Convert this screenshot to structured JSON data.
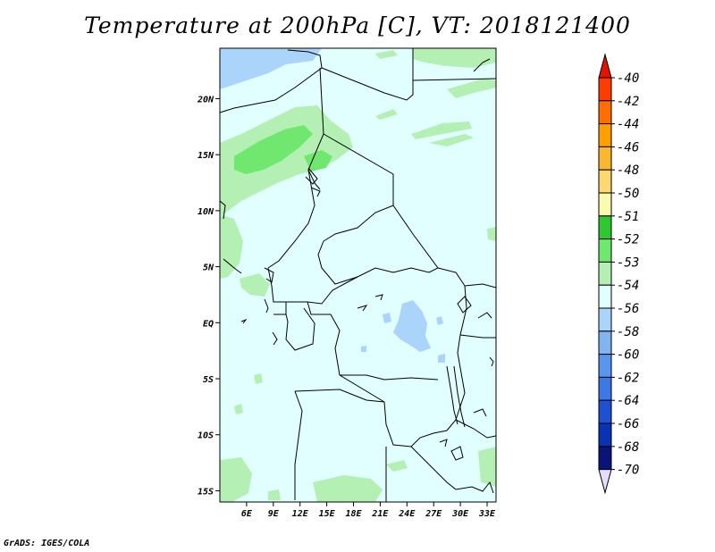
{
  "title": "Temperature at 200hPa [C], VT: 2018121400",
  "credit": "GrADS: IGES/COLA",
  "map": {
    "lon_range": [
      3,
      34
    ],
    "lat_range": [
      -16,
      24.5
    ],
    "x_ticks": [
      "6E",
      "9E",
      "12E",
      "15E",
      "18E",
      "21E",
      "24E",
      "27E",
      "30E",
      "33E"
    ],
    "x_tick_values": [
      6,
      9,
      12,
      15,
      18,
      21,
      24,
      27,
      30,
      33
    ],
    "y_ticks": [
      "20N",
      "15N",
      "10N",
      "5N",
      "EQ",
      "5S",
      "10S",
      "15S"
    ],
    "y_tick_values": [
      20,
      15,
      10,
      5,
      0,
      -5,
      -10,
      -15
    ]
  },
  "colorbar": {
    "labels": [
      "-40",
      "-42",
      "-44",
      "-46",
      "-48",
      "-50",
      "-51",
      "-52",
      "-53",
      "-54",
      "-56",
      "-58",
      "-60",
      "-62",
      "-64",
      "-66",
      "-68",
      "-70"
    ],
    "colors": [
      "#e11400",
      "#ff3c00",
      "#ff6e00",
      "#ffa000",
      "#f8b830",
      "#fcd870",
      "#fafab0",
      "#30c830",
      "#70e870",
      "#b4f0b4",
      "#e0fffe",
      "#aad4fa",
      "#82b4f0",
      "#5a96f0",
      "#3c78e6",
      "#1e50d2",
      "#0a32b4",
      "#0a1478",
      "#e6dcff"
    ]
  },
  "palette": {
    "background": "#e0fffe",
    "cold": "#aad4fa",
    "warm_light": "#b4f0b4",
    "warm": "#70e870"
  }
}
